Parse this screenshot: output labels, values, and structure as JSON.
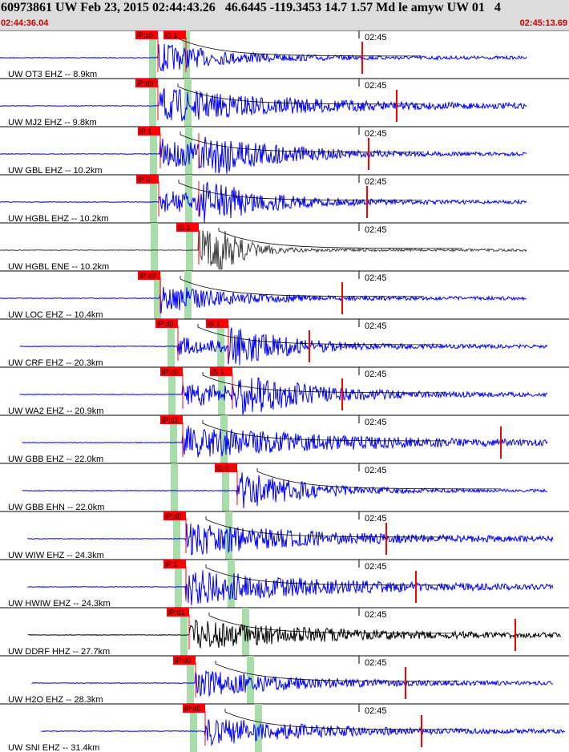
{
  "header": {
    "title": "60973861 UW Feb 23, 2015 02:44:43.26   46.6445 -119.3453 14.7 1.57 Md le amyw UW 01   4",
    "start_time": "02:44:36.04",
    "end_time": "02:45:13.69"
  },
  "colors": {
    "blue_trace": "#0000ff",
    "dark_trace": "#000000",
    "gray_trace": "#404040",
    "pick": "#ff0000",
    "green": "#a8dca8"
  },
  "traces": [
    {
      "label": "UW OT3 EHZ -- 8.9km",
      "color": "blue",
      "p_label": "iP:c0",
      "s_label": "iS 1",
      "time_label": "02:45"
    },
    {
      "label": "UW MJ2 EHZ -- 9.8km",
      "color": "blue",
      "p_label": "iP:d0",
      "s_label": "",
      "time_label": "02:45"
    },
    {
      "label": "UW GBL EHZ -- 10.2km",
      "color": "blue",
      "p_label": "iP 1",
      "s_label": "",
      "time_label": "02:45"
    },
    {
      "label": "UW HGBL EHZ -- 10.2km",
      "color": "blue",
      "p_label": "iP 0",
      "s_label": "",
      "time_label": "02:45"
    },
    {
      "label": "UW HGBL ENE -- 10.2km",
      "color": "gray",
      "p_label": "",
      "s_label": "iS 1",
      "time_label": "02:45"
    },
    {
      "label": "UW LOC EHZ -- 10.4km",
      "color": "blue",
      "p_label": "iP:c0",
      "s_label": "",
      "time_label": "02:45"
    },
    {
      "label": "UW CRF EHZ -- 20.3km",
      "color": "blue",
      "p_label": "iP:d0",
      "s_label": "iS 1",
      "time_label": "02:45"
    },
    {
      "label": "UW WA2 EHZ -- 20.9km",
      "color": "blue",
      "p_label": "iP:c0",
      "s_label": "iS 1",
      "time_label": "02:45"
    },
    {
      "label": "UW GBB EHZ -- 22.0km",
      "color": "blue",
      "p_label": "iP:d1",
      "s_label": "",
      "time_label": "02:45"
    },
    {
      "label": "UW GBB EHN -- 22.0km",
      "color": "blue",
      "p_label": "",
      "s_label": "iS 0",
      "time_label": "02:45"
    },
    {
      "label": "UW WIW EHZ -- 24.3km",
      "color": "blue",
      "p_label": "iP:d0",
      "s_label": "",
      "time_label": "02:45"
    },
    {
      "label": "UW HWIW EHZ -- 24.3km",
      "color": "blue",
      "p_label": "iP 1",
      "s_label": "",
      "time_label": "02:45"
    },
    {
      "label": "UW DDRF HHZ -- 27.7km",
      "color": "dark",
      "p_label": "iP:d1",
      "s_label": "",
      "time_label": "02:45"
    },
    {
      "label": "UW H2O EHZ -- 28.3km",
      "color": "blue",
      "p_label": "iP:d0",
      "s_label": "",
      "time_label": "02:45"
    },
    {
      "label": "UW SNI EHZ -- 31.4km",
      "color": "blue",
      "p_label": "iP:d0",
      "s_label": "",
      "time_label": "02:45"
    }
  ]
}
